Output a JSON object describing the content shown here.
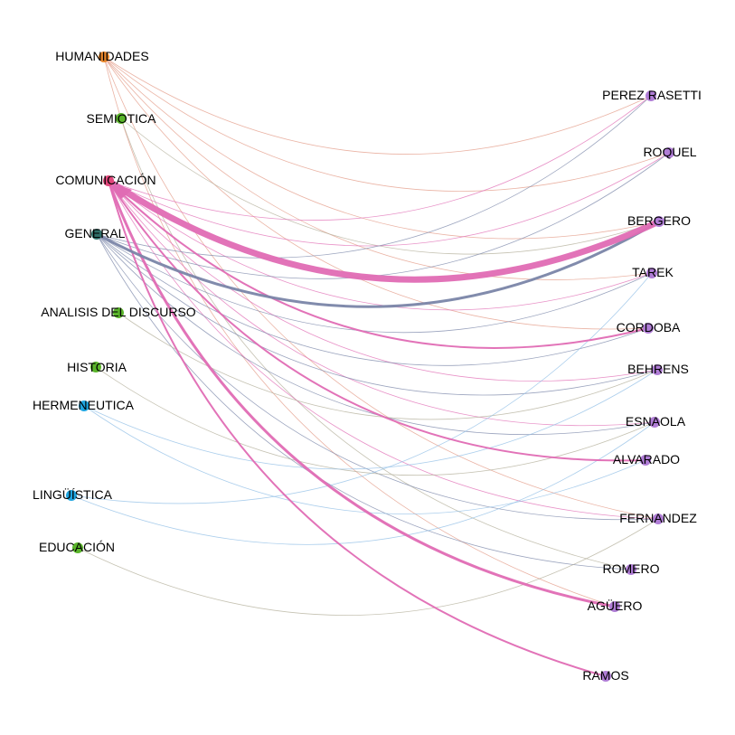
{
  "colors": {
    "humanidades": "#e8862b",
    "semiotica": "#5ab52a",
    "comunicacion": "#e0457a",
    "general": "#2f6e68",
    "green": "#5ab52a",
    "blue": "#1fa5e0",
    "author": "#b07dd6",
    "edge_pink": "#e06cb4",
    "edge_slate": "#7a85a8",
    "edge_orange": "#e39a86",
    "edge_blue": "#8fbde6",
    "edge_olive": "#b2ae98"
  },
  "nodes": {
    "humanidades": {
      "label": "HUMANIDADES"
    },
    "semiotica": {
      "label": "SEMIOTICA"
    },
    "comunicacion": {
      "label": "COMUNICACIÓN"
    },
    "general": {
      "label": "GENERAL"
    },
    "analisis": {
      "label": "ANALISIS DEL DISCURSO"
    },
    "historia": {
      "label": "HISTORIA"
    },
    "hermeneutica": {
      "label": "HERMENEUTICA"
    },
    "linguistica": {
      "label": "LINGÜÍSTICA"
    },
    "educacion": {
      "label": "EDUCACIÓN"
    },
    "perez": {
      "label": "PEREZ RASETTI"
    },
    "roquel": {
      "label": "ROQUEL"
    },
    "bergero": {
      "label": "BERGERO"
    },
    "tarek": {
      "label": "TAREK"
    },
    "cordoba": {
      "label": "CORDOBA"
    },
    "behrens": {
      "label": "BEHRENS"
    },
    "esnaola": {
      "label": "ESNAOLA"
    },
    "alvarado": {
      "label": "ALVARADO"
    },
    "fernandez": {
      "label": "FERNANDEZ"
    },
    "romero": {
      "label": "ROMERO"
    },
    "aguero": {
      "label": "AGÜERO"
    },
    "ramos": {
      "label": "RAMOS"
    }
  },
  "edges": [
    {
      "from": "humanidades",
      "to": "perez",
      "color": "edge_orange",
      "weight": 1
    },
    {
      "from": "humanidades",
      "to": "roquel",
      "color": "edge_orange",
      "weight": 1
    },
    {
      "from": "humanidades",
      "to": "bergero",
      "color": "edge_orange",
      "weight": 1
    },
    {
      "from": "humanidades",
      "to": "tarek",
      "color": "edge_orange",
      "weight": 1
    },
    {
      "from": "humanidades",
      "to": "cordoba",
      "color": "edge_orange",
      "weight": 1
    },
    {
      "from": "humanidades",
      "to": "fernandez",
      "color": "edge_orange",
      "weight": 1
    },
    {
      "from": "humanidades",
      "to": "aguero",
      "color": "edge_orange",
      "weight": 1
    },
    {
      "from": "semiotica",
      "to": "bergero",
      "color": "edge_olive",
      "weight": 1
    },
    {
      "from": "semiotica",
      "to": "romero",
      "color": "edge_olive",
      "weight": 1
    },
    {
      "from": "comunicacion",
      "to": "bergero",
      "color": "edge_pink",
      "weight": 8
    },
    {
      "from": "comunicacion",
      "to": "cordoba",
      "color": "edge_pink",
      "weight": 2
    },
    {
      "from": "comunicacion",
      "to": "alvarado",
      "color": "edge_pink",
      "weight": 2
    },
    {
      "from": "comunicacion",
      "to": "aguero",
      "color": "edge_pink",
      "weight": 3
    },
    {
      "from": "comunicacion",
      "to": "ramos",
      "color": "edge_pink",
      "weight": 2
    },
    {
      "from": "comunicacion",
      "to": "perez",
      "color": "edge_pink",
      "weight": 1
    },
    {
      "from": "comunicacion",
      "to": "roquel",
      "color": "edge_pink",
      "weight": 1
    },
    {
      "from": "comunicacion",
      "to": "tarek",
      "color": "edge_pink",
      "weight": 1
    },
    {
      "from": "comunicacion",
      "to": "behrens",
      "color": "edge_pink",
      "weight": 1
    },
    {
      "from": "comunicacion",
      "to": "esnaola",
      "color": "edge_pink",
      "weight": 1
    },
    {
      "from": "comunicacion",
      "to": "fernandez",
      "color": "edge_pink",
      "weight": 1
    },
    {
      "from": "general",
      "to": "bergero",
      "color": "edge_slate",
      "weight": 3
    },
    {
      "from": "general",
      "to": "perez",
      "color": "edge_slate",
      "weight": 1
    },
    {
      "from": "general",
      "to": "roquel",
      "color": "edge_slate",
      "weight": 1
    },
    {
      "from": "general",
      "to": "tarek",
      "color": "edge_slate",
      "weight": 1
    },
    {
      "from": "general",
      "to": "cordoba",
      "color": "edge_slate",
      "weight": 1
    },
    {
      "from": "general",
      "to": "behrens",
      "color": "edge_slate",
      "weight": 1
    },
    {
      "from": "general",
      "to": "esnaola",
      "color": "edge_slate",
      "weight": 1
    },
    {
      "from": "general",
      "to": "fernandez",
      "color": "edge_slate",
      "weight": 1
    },
    {
      "from": "general",
      "to": "romero",
      "color": "edge_slate",
      "weight": 1
    },
    {
      "from": "analisis",
      "to": "behrens",
      "color": "edge_olive",
      "weight": 1
    },
    {
      "from": "historia",
      "to": "esnaola",
      "color": "edge_olive",
      "weight": 1
    },
    {
      "from": "hermeneutica",
      "to": "behrens",
      "color": "edge_blue",
      "weight": 1
    },
    {
      "from": "hermeneutica",
      "to": "alvarado",
      "color": "edge_blue",
      "weight": 1
    },
    {
      "from": "linguistica",
      "to": "tarek",
      "color": "edge_blue",
      "weight": 1
    },
    {
      "from": "linguistica",
      "to": "esnaola",
      "color": "edge_blue",
      "weight": 1
    },
    {
      "from": "educacion",
      "to": "fernandez",
      "color": "edge_olive",
      "weight": 1
    }
  ]
}
